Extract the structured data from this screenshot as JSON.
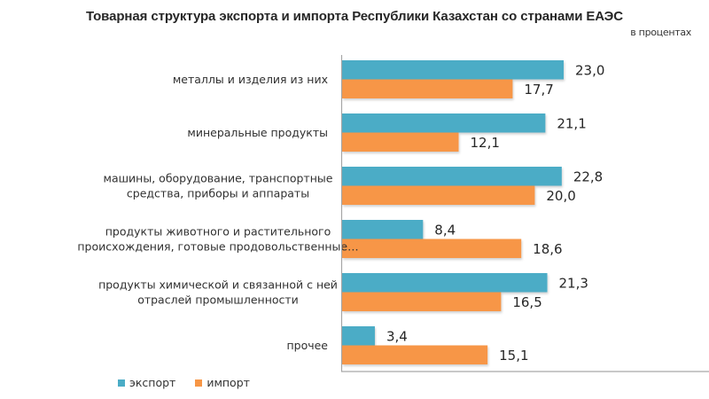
{
  "chart_data": {
    "type": "bar",
    "orientation": "horizontal",
    "title": "Товарная структура экспорта и импорта Республики Казахстан со странами ЕАЭС",
    "subtitle": "в процентах",
    "xlabel": "",
    "ylabel": "",
    "xlim": [
      0,
      30
    ],
    "grid": false,
    "legend_position": "bottom-left",
    "categories": [
      [
        "металлы и изделия из них"
      ],
      [
        "минеральные продукты"
      ],
      [
        "машины, оборудование, транспортные",
        "средства, приборы и аппараты"
      ],
      [
        "продукты животного и растительного",
        "происхождения, готовые продовольственные…"
      ],
      [
        "продукты химической и связанной с ней",
        "отраслей промышленности"
      ],
      [
        "прочее"
      ]
    ],
    "series": [
      {
        "name": "экспорт",
        "color": "#4BACC6",
        "values": [
          23.0,
          21.1,
          22.8,
          8.4,
          21.3,
          3.4
        ],
        "labels": [
          "23,0",
          "21,1",
          "22,8",
          "8,4",
          "21,3",
          "3,4"
        ]
      },
      {
        "name": "импорт",
        "color": "#F79646",
        "values": [
          17.7,
          12.1,
          20.0,
          18.6,
          16.5,
          15.1
        ],
        "labels": [
          "17,7",
          "12,1",
          "20,0",
          "18,6",
          "16,5",
          "15,1"
        ]
      }
    ]
  }
}
